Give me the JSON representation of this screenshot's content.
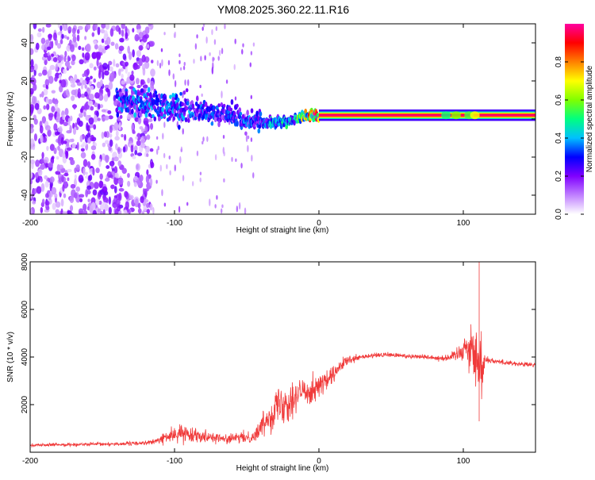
{
  "title": "YM08.2025.360.22.11.R16",
  "chart_data": [
    {
      "type": "heatmap",
      "name": "spectrogram",
      "xlabel": "Height of straight line (km)",
      "ylabel": "Frequency (Hz)",
      "xlim": [
        -200,
        150
      ],
      "ylim": [
        -50,
        50
      ],
      "xticks": [
        -200,
        -100,
        0,
        100
      ],
      "yticks": [
        -40,
        -20,
        0,
        20,
        40
      ],
      "colorbar": {
        "label": "Normalized spectral amplitude",
        "range": [
          0.0,
          1.0
        ],
        "ticks": [
          0.0,
          0.2,
          0.4,
          0.6,
          0.8
        ],
        "colors": [
          "#ffffff",
          "#c080ff",
          "#8000ff",
          "#0000ff",
          "#00c0ff",
          "#00ff80",
          "#80ff00",
          "#ffff00",
          "#ff8000",
          "#ff0000",
          "#ff00a0"
        ]
      },
      "main_line": {
        "frequency": 2,
        "segments": [
          {
            "x": [
              -140,
              -120,
              -100,
              -80,
              -60,
              -45,
              -30,
              -15,
              -5,
              0
            ],
            "freq": [
              10,
              8,
              6,
              4,
              2,
              -2,
              -2,
              0,
              2,
              2
            ]
          },
          {
            "x": [
              0,
              150
            ],
            "freq": [
              2,
              2
            ]
          }
        ],
        "amplitude_by_x": [
          [
            -140,
            0.35
          ],
          [
            -100,
            0.35
          ],
          [
            -60,
            0.3
          ],
          [
            -20,
            0.45
          ],
          [
            0,
            0.95
          ],
          [
            150,
            0.95
          ]
        ]
      },
      "noise_region": {
        "x": [
          -200,
          -115
        ],
        "freq": [
          -50,
          50
        ],
        "amplitude": 0.15
      }
    },
    {
      "type": "line",
      "name": "snr",
      "xlabel": "Height of straight line (km)",
      "ylabel": "SNR (10 * v/v)",
      "xlim": [
        -200,
        150
      ],
      "ylim": [
        0,
        8000
      ],
      "xticks": [
        -200,
        -100,
        0,
        100
      ],
      "yticks": [
        2000,
        4000,
        6000,
        8000
      ],
      "color": "#f03a3a",
      "envelope": {
        "x": [
          -200,
          -160,
          -130,
          -115,
          -105,
          -95,
          -80,
          -65,
          -55,
          -45,
          -35,
          -28,
          -20,
          -12,
          -5,
          0,
          8,
          18,
          30,
          45,
          60,
          75,
          85,
          92,
          97,
          102,
          107,
          112,
          115,
          125,
          140,
          150
        ],
        "mean": [
          300,
          330,
          360,
          420,
          650,
          800,
          700,
          550,
          600,
          650,
          1500,
          2000,
          2200,
          2500,
          2650,
          2800,
          3100,
          3800,
          4000,
          4100,
          4050,
          4000,
          3950,
          4000,
          4200,
          4500,
          4200,
          3500,
          3900,
          3800,
          3700,
          3650
        ],
        "noise": [
          60,
          70,
          80,
          100,
          250,
          350,
          250,
          180,
          220,
          250,
          600,
          900,
          800,
          700,
          600,
          500,
          400,
          200,
          120,
          100,
          100,
          100,
          120,
          180,
          350,
          900,
          1000,
          1800,
          150,
          100,
          100,
          100
        ]
      },
      "spike": {
        "x": 111,
        "value": 8100,
        "min": 1300
      }
    }
  ]
}
